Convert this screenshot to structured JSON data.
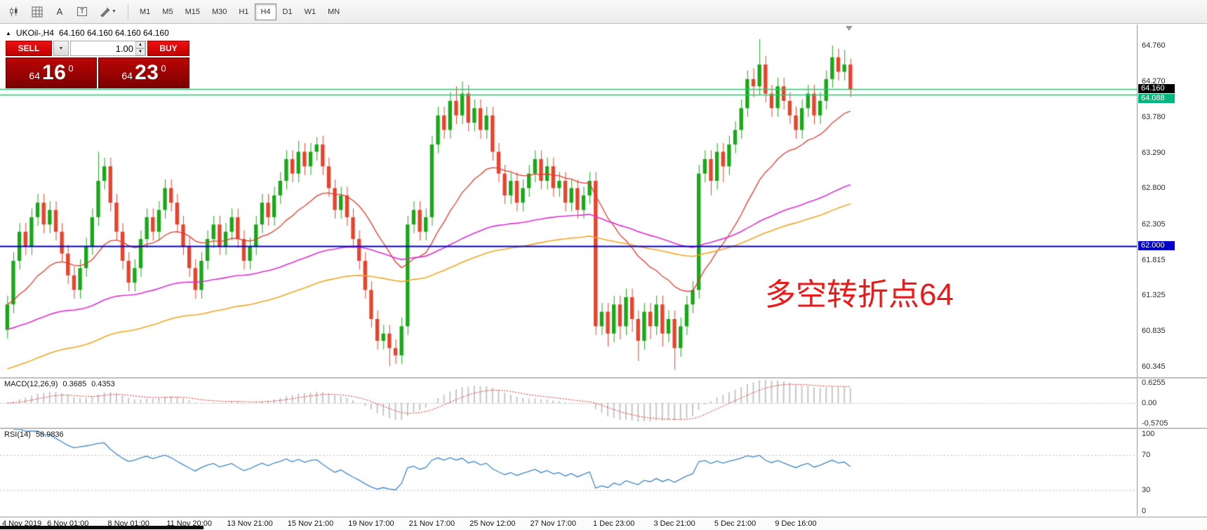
{
  "toolbar": {
    "tool_icons": [
      {
        "name": "chart-candles-icon"
      },
      {
        "name": "indicators-grid-icon"
      },
      {
        "name": "label-a-icon",
        "glyph": "A"
      },
      {
        "name": "text-tool-icon",
        "glyph": "T"
      },
      {
        "name": "drawing-tools-icon"
      }
    ],
    "timeframes": [
      {
        "label": "M1"
      },
      {
        "label": "M5"
      },
      {
        "label": "M15"
      },
      {
        "label": "M30"
      },
      {
        "label": "H1"
      },
      {
        "label": "H4",
        "active": true
      },
      {
        "label": "D1"
      },
      {
        "label": "W1"
      },
      {
        "label": "MN"
      }
    ]
  },
  "chart": {
    "title_symbol": "UKOil-,H4",
    "title_quotes": "64.160 64.160 64.160 64.160",
    "trade_panel": {
      "sell_label": "SELL",
      "buy_label": "BUY",
      "volume": "1.00",
      "bid_small": "64",
      "bid_big": "16",
      "bid_sup": "0",
      "ask_small": "64",
      "ask_big": "23",
      "ask_sup": "0"
    },
    "annotation": {
      "text": "多空转折点64",
      "color": "#e81a1a"
    }
  },
  "macd": {
    "label": "MACD(12,26,9)",
    "value_main": "0.3685",
    "value_signal": "0.4353",
    "axis": [
      "0.6255",
      "0.00",
      "-0.5705"
    ]
  },
  "rsi": {
    "label": "RSI(14)",
    "value": "58.9836",
    "axis": [
      "100",
      "70",
      "30",
      "0"
    ]
  },
  "time_axis": {
    "labels": [
      "4 Nov 2019",
      "6 Nov 01:00",
      "8 Nov 01:00",
      "11 Nov 20:00",
      "13 Nov 21:00",
      "15 Nov 21:00",
      "19 Nov 17:00",
      "21 Nov 17:00",
      "25 Nov 12:00",
      "27 Nov 17:00",
      "1 Dec 23:00",
      "3 Dec 21:00",
      "5 Dec 21:00",
      "9 Dec 16:00"
    ]
  },
  "chart_data": {
    "type": "candlestick",
    "symbol": "UKOil-",
    "timeframe": "H4",
    "y_range": [
      60.2,
      65.05
    ],
    "bars_area_fraction": 0.747,
    "up_color": "#18a818",
    "down_color": "#e8432c",
    "price_axis_ticks": [
      "64.760",
      "64.270",
      "63.780",
      "63.290",
      "62.800",
      "62.305",
      "61.815",
      "61.325",
      "60.835",
      "60.345"
    ],
    "price_badges": [
      {
        "value": "64.160",
        "bg": "#000000"
      },
      {
        "value": "64.088",
        "bg": "#00b87c"
      },
      {
        "value": "62.000",
        "bg": "#0000cc"
      }
    ],
    "hlines": [
      {
        "price": 64.16,
        "color": "#0fd26e",
        "width": 1.4
      },
      {
        "price": 64.088,
        "color": "#0fd26e",
        "width": 1.4
      },
      {
        "price": 62.0,
        "color": "#0000c0",
        "width": 2
      }
    ],
    "moving_averages": [
      {
        "name": "ema-fast-red",
        "period": 21,
        "init": 61.2,
        "color": "#e23a2e",
        "width": 1.3
      },
      {
        "name": "ema-mid-magenta",
        "period": 89,
        "init": 60.85,
        "color": "#df2fd4",
        "width": 1.6
      },
      {
        "name": "ema-slow-orange",
        "period": 120,
        "init": 60.3,
        "color": "#f5a623",
        "width": 1.6
      }
    ],
    "macd_settings": {
      "fast": 12,
      "slow": 26,
      "signal": 9,
      "range": [
        -0.7,
        0.7
      ]
    },
    "rsi_settings": {
      "period": 14,
      "range": [
        0,
        100
      ],
      "levels": [
        70,
        30
      ]
    },
    "candles": [
      [
        60.85,
        61.32,
        60.73,
        61.2
      ],
      [
        61.2,
        61.92,
        61.08,
        61.8
      ],
      [
        61.8,
        62.32,
        61.68,
        62.2
      ],
      [
        62.2,
        62.32,
        61.88,
        62.0
      ],
      [
        62.0,
        62.52,
        61.88,
        62.4
      ],
      [
        62.4,
        62.72,
        62.28,
        62.6
      ],
      [
        62.6,
        62.72,
        62.18,
        62.3
      ],
      [
        62.3,
        62.62,
        62.18,
        62.5
      ],
      [
        62.5,
        62.62,
        62.08,
        62.2
      ],
      [
        62.2,
        62.32,
        61.78,
        61.9
      ],
      [
        61.9,
        62.02,
        61.48,
        61.6
      ],
      [
        61.6,
        61.72,
        61.28,
        61.4
      ],
      [
        61.4,
        61.82,
        61.28,
        61.7
      ],
      [
        61.7,
        62.12,
        61.58,
        62.0
      ],
      [
        62.0,
        62.52,
        61.88,
        62.4
      ],
      [
        62.4,
        63.3,
        62.28,
        62.9
      ],
      [
        62.9,
        63.22,
        62.78,
        63.1
      ],
      [
        63.1,
        63.22,
        62.48,
        62.6
      ],
      [
        62.6,
        62.72,
        62.08,
        62.2
      ],
      [
        62.2,
        62.32,
        61.68,
        61.8
      ],
      [
        61.8,
        61.92,
        61.38,
        61.5
      ],
      [
        61.5,
        61.82,
        61.38,
        61.7
      ],
      [
        61.7,
        62.22,
        61.58,
        62.1
      ],
      [
        62.1,
        62.52,
        61.98,
        62.4
      ],
      [
        62.4,
        62.52,
        62.08,
        62.2
      ],
      [
        62.2,
        62.62,
        62.08,
        62.5
      ],
      [
        62.5,
        62.92,
        62.38,
        62.8
      ],
      [
        62.8,
        62.92,
        62.48,
        62.6
      ],
      [
        62.6,
        62.72,
        62.18,
        62.3
      ],
      [
        62.3,
        62.42,
        61.88,
        62.0
      ],
      [
        62.0,
        62.12,
        61.58,
        61.7
      ],
      [
        61.7,
        61.82,
        61.28,
        61.4
      ],
      [
        61.4,
        61.92,
        61.28,
        61.8
      ],
      [
        61.8,
        62.22,
        61.68,
        62.1
      ],
      [
        62.1,
        62.42,
        61.98,
        62.3
      ],
      [
        62.3,
        62.42,
        61.88,
        62.0
      ],
      [
        62.0,
        62.32,
        61.88,
        62.2
      ],
      [
        62.2,
        62.52,
        62.08,
        62.4
      ],
      [
        62.4,
        62.52,
        61.98,
        62.1
      ],
      [
        62.1,
        62.22,
        61.68,
        61.8
      ],
      [
        61.8,
        62.12,
        61.68,
        62.0
      ],
      [
        62.0,
        62.42,
        61.88,
        62.3
      ],
      [
        62.3,
        62.72,
        62.18,
        62.6
      ],
      [
        62.6,
        62.72,
        62.28,
        62.4
      ],
      [
        62.4,
        62.82,
        62.28,
        62.7
      ],
      [
        62.7,
        63.02,
        62.58,
        62.9
      ],
      [
        62.9,
        63.32,
        62.78,
        63.2
      ],
      [
        63.2,
        63.32,
        62.88,
        63.0
      ],
      [
        63.0,
        63.45,
        62.88,
        63.3
      ],
      [
        63.3,
        63.42,
        62.98,
        63.1
      ],
      [
        63.1,
        63.42,
        62.98,
        63.3
      ],
      [
        63.3,
        63.5,
        63.18,
        63.4
      ],
      [
        63.4,
        63.52,
        62.98,
        63.1
      ],
      [
        63.1,
        63.22,
        62.68,
        62.8
      ],
      [
        62.8,
        62.92,
        62.38,
        62.5
      ],
      [
        62.5,
        62.82,
        62.38,
        62.7
      ],
      [
        62.7,
        62.82,
        62.28,
        62.4
      ],
      [
        62.4,
        62.52,
        61.98,
        62.1
      ],
      [
        62.1,
        62.22,
        61.68,
        61.8
      ],
      [
        61.8,
        61.92,
        61.28,
        61.4
      ],
      [
        61.4,
        61.52,
        60.88,
        61.0
      ],
      [
        61.0,
        61.12,
        60.58,
        60.7
      ],
      [
        60.7,
        60.92,
        60.58,
        60.8
      ],
      [
        60.8,
        60.92,
        60.35,
        60.6
      ],
      [
        60.6,
        60.72,
        60.38,
        60.5
      ],
      [
        60.5,
        61.02,
        60.38,
        60.9
      ],
      [
        60.9,
        62.42,
        60.78,
        62.3
      ],
      [
        62.3,
        62.62,
        62.18,
        62.5
      ],
      [
        62.5,
        62.62,
        62.08,
        62.2
      ],
      [
        62.2,
        62.52,
        62.08,
        62.4
      ],
      [
        62.4,
        63.52,
        62.28,
        63.4
      ],
      [
        63.4,
        63.92,
        63.28,
        63.8
      ],
      [
        63.8,
        63.92,
        63.48,
        63.6
      ],
      [
        63.6,
        64.12,
        63.48,
        64.0
      ],
      [
        64.0,
        64.2,
        63.68,
        63.8
      ],
      [
        63.8,
        64.27,
        63.68,
        64.1
      ],
      [
        64.1,
        64.22,
        63.58,
        63.7
      ],
      [
        63.7,
        64.02,
        63.58,
        63.9
      ],
      [
        63.9,
        64.02,
        63.48,
        63.6
      ],
      [
        63.6,
        63.92,
        63.48,
        63.8
      ],
      [
        63.8,
        63.92,
        63.18,
        63.3
      ],
      [
        63.3,
        63.42,
        62.88,
        63.0
      ],
      [
        63.0,
        63.12,
        62.58,
        62.7
      ],
      [
        62.7,
        63.02,
        62.58,
        62.9
      ],
      [
        62.9,
        63.02,
        62.48,
        62.6
      ],
      [
        62.6,
        62.92,
        62.48,
        62.8
      ],
      [
        62.8,
        63.12,
        62.68,
        63.0
      ],
      [
        63.0,
        63.32,
        62.88,
        63.2
      ],
      [
        63.2,
        63.32,
        62.78,
        62.9
      ],
      [
        62.9,
        63.22,
        62.78,
        63.1
      ],
      [
        63.1,
        63.22,
        62.68,
        62.8
      ],
      [
        62.8,
        63.02,
        62.68,
        62.9
      ],
      [
        62.9,
        63.02,
        62.48,
        62.6
      ],
      [
        62.6,
        62.92,
        62.48,
        62.8
      ],
      [
        62.8,
        62.92,
        62.38,
        62.5
      ],
      [
        62.5,
        62.82,
        62.38,
        62.7
      ],
      [
        62.7,
        63.02,
        62.58,
        62.9
      ],
      [
        62.9,
        63.02,
        60.78,
        60.9
      ],
      [
        60.9,
        61.22,
        60.78,
        61.1
      ],
      [
        61.1,
        61.22,
        60.62,
        60.8
      ],
      [
        60.8,
        61.32,
        60.68,
        61.2
      ],
      [
        61.2,
        61.32,
        60.72,
        60.9
      ],
      [
        60.9,
        61.42,
        60.78,
        61.3
      ],
      [
        61.3,
        61.42,
        60.82,
        61.0
      ],
      [
        61.0,
        61.12,
        60.42,
        60.7
      ],
      [
        60.7,
        61.22,
        60.58,
        61.1
      ],
      [
        61.1,
        61.22,
        60.72,
        60.9
      ],
      [
        60.9,
        61.32,
        60.78,
        61.2
      ],
      [
        61.2,
        61.32,
        60.62,
        60.8
      ],
      [
        60.8,
        61.12,
        60.68,
        61.0
      ],
      [
        61.0,
        61.12,
        60.3,
        60.6
      ],
      [
        60.6,
        61.02,
        60.48,
        60.9
      ],
      [
        60.9,
        61.32,
        60.78,
        61.2
      ],
      [
        61.2,
        61.52,
        61.08,
        61.4
      ],
      [
        61.4,
        63.12,
        61.28,
        63.0
      ],
      [
        63.0,
        63.32,
        62.88,
        63.2
      ],
      [
        63.2,
        63.32,
        62.7,
        62.9
      ],
      [
        62.9,
        63.42,
        62.78,
        63.3
      ],
      [
        63.3,
        63.42,
        62.88,
        63.1
      ],
      [
        63.1,
        63.52,
        62.98,
        63.4
      ],
      [
        63.4,
        63.72,
        63.28,
        63.6
      ],
      [
        63.6,
        64.02,
        63.48,
        63.9
      ],
      [
        63.9,
        64.42,
        63.78,
        64.3
      ],
      [
        64.3,
        64.45,
        64.05,
        64.2
      ],
      [
        64.2,
        64.85,
        64.08,
        64.5
      ],
      [
        64.5,
        64.62,
        63.98,
        64.1
      ],
      [
        64.1,
        64.22,
        63.78,
        63.9
      ],
      [
        63.9,
        64.32,
        63.78,
        64.2
      ],
      [
        64.2,
        64.32,
        63.88,
        64.0
      ],
      [
        64.0,
        64.12,
        63.68,
        63.8
      ],
      [
        63.8,
        63.92,
        63.48,
        63.6
      ],
      [
        63.6,
        64.02,
        63.48,
        63.9
      ],
      [
        63.9,
        64.22,
        63.78,
        64.1
      ],
      [
        64.1,
        64.22,
        63.68,
        63.8
      ],
      [
        63.8,
        64.12,
        63.68,
        64.0
      ],
      [
        64.0,
        64.42,
        63.88,
        64.3
      ],
      [
        64.3,
        64.76,
        64.18,
        64.6
      ],
      [
        64.6,
        64.72,
        64.28,
        64.4
      ],
      [
        64.4,
        64.7,
        64.28,
        64.5
      ],
      [
        64.5,
        64.58,
        64.05,
        64.16
      ]
    ]
  }
}
